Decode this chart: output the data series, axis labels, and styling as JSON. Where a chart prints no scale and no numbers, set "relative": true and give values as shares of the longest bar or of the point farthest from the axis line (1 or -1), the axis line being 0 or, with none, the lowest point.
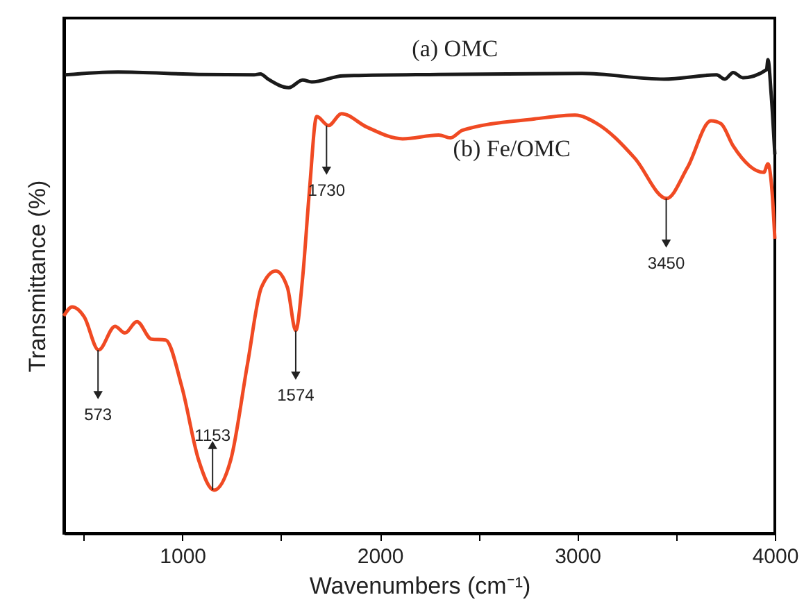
{
  "chart_data": {
    "type": "line",
    "relative": true,
    "xlabel": "Wavenumbers (cm⁻¹)",
    "ylabel": "Transmittance (%)",
    "xlim": [
      400,
      4000
    ],
    "xticks": [
      {
        "value": 500,
        "label": null
      },
      1000,
      {
        "value": 1500,
        "label": null
      },
      2000,
      {
        "value": 2500,
        "label": null
      },
      3000,
      {
        "value": 3500,
        "label": null
      },
      4000
    ],
    "grid": false,
    "legend": false,
    "marker": "none",
    "line_style": "solid",
    "series": [
      {
        "name": "(a) OMC",
        "color": "#1a1a1a",
        "x": [
          407,
          674,
          1082,
          1363,
          1395,
          1434,
          1539,
          1609,
          1655,
          1813,
          2298,
          3023,
          3438,
          3705,
          3747,
          3789,
          3838,
          3958,
          3965,
          3982,
          4000
        ],
        "values": [
          0.968,
          0.974,
          0.969,
          0.968,
          0.97,
          0.959,
          0.941,
          0.957,
          0.953,
          0.966,
          0.969,
          0.971,
          0.959,
          0.968,
          0.959,
          0.973,
          0.962,
          0.979,
          1.0,
          0.924,
          0.8
        ]
      },
      {
        "name": "(b) Fe/OMC",
        "color": "#f04a23",
        "x": [
          400,
          442,
          503,
          576,
          659,
          709,
          770,
          843,
          915,
          998,
          1082,
          1160,
          1245,
          1330,
          1400,
          1473,
          1532,
          1574,
          1609,
          1643,
          1680,
          1740,
          1806,
          1933,
          2115,
          2298,
          2358,
          2418,
          2784,
          2988,
          3100,
          3291,
          3452,
          3557,
          3677,
          3727,
          3789,
          3944,
          3965,
          3986,
          4000
        ],
        "values": [
          0.459,
          0.478,
          0.457,
          0.387,
          0.437,
          0.423,
          0.447,
          0.41,
          0.408,
          0.308,
          0.155,
          0.091,
          0.155,
          0.358,
          0.519,
          0.554,
          0.519,
          0.428,
          0.54,
          0.721,
          0.88,
          0.861,
          0.886,
          0.858,
          0.833,
          0.841,
          0.835,
          0.851,
          0.875,
          0.883,
          0.865,
          0.792,
          0.707,
          0.772,
          0.871,
          0.865,
          0.818,
          0.762,
          0.78,
          0.721,
          0.622
        ]
      }
    ],
    "annotations": [
      {
        "text": "573",
        "x": 573,
        "y": 0.387
      },
      {
        "text": "1153",
        "x": 1153,
        "y": 0.091
      },
      {
        "text": "1574",
        "x": 1574,
        "y": 0.428
      },
      {
        "text": "1730",
        "x": 1730,
        "y": 0.861
      },
      {
        "text": "3450",
        "x": 3450,
        "y": 0.707
      }
    ]
  }
}
